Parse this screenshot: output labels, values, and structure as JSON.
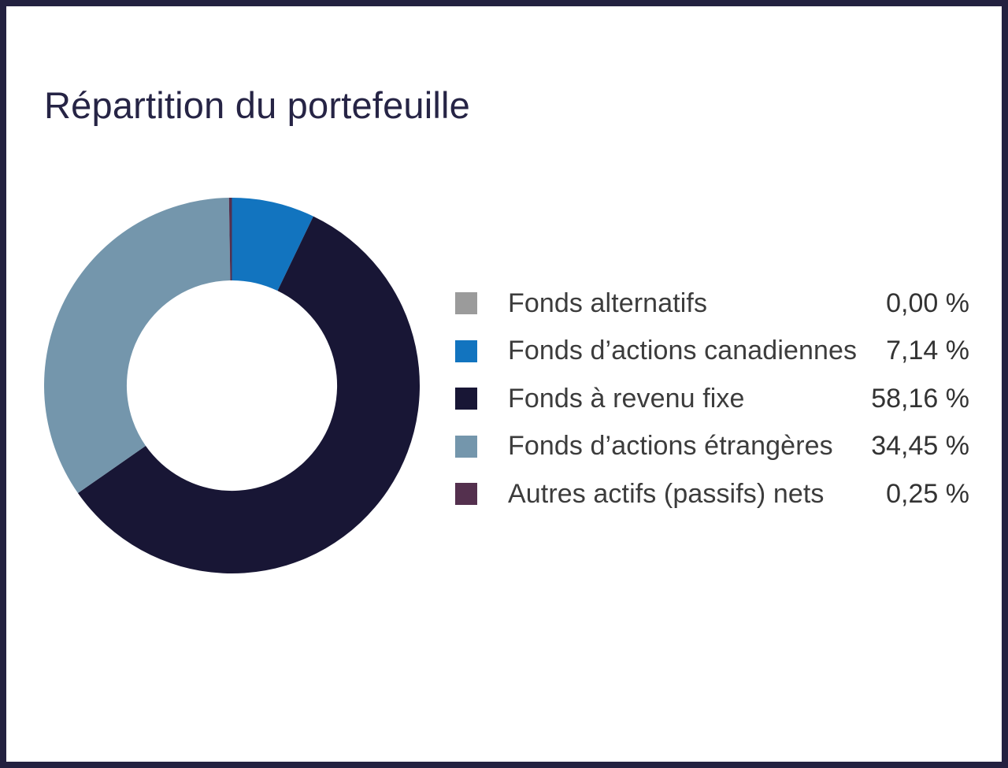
{
  "frame": {
    "border_color": "#232140",
    "background": "#ffffff",
    "title_color": "#262445"
  },
  "chart_data": {
    "type": "pie",
    "subtype": "donut",
    "title": "Répartition du portefeuille",
    "unit": "%",
    "legend_position": "right",
    "start_angle_deg": 0,
    "direction": "clockwise",
    "inner_radius_ratio": 0.56,
    "series": [
      {
        "name": "Fonds alternatifs",
        "value": 0.0,
        "display": "0,00 %",
        "color": "#9b9b9b"
      },
      {
        "name": "Fonds d’actions canadiennes",
        "value": 7.14,
        "display": "7,14 %",
        "color": "#1274bf"
      },
      {
        "name": "Fonds à revenu fixe",
        "value": 58.16,
        "display": "58,16 %",
        "color": "#181635"
      },
      {
        "name": "Fonds d’actions étrangères",
        "value": 34.45,
        "display": "34,45 %",
        "color": "#7496ac"
      },
      {
        "name": "Autres actifs (passifs) nets",
        "value": 0.25,
        "display": "0,25 %",
        "color": "#54304e"
      }
    ]
  }
}
